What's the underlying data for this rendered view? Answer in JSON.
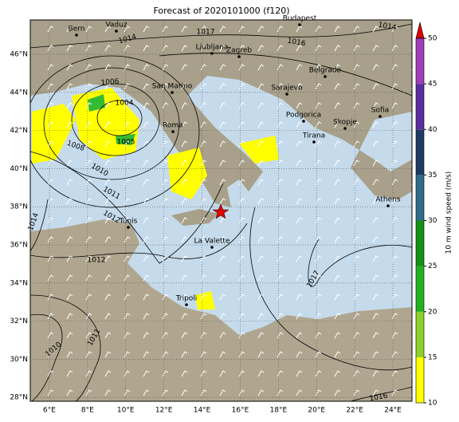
{
  "map": {
    "title": "Forecast of 2020101000 (f120)",
    "xlim": [
      5,
      25
    ],
    "ylim": [
      27.8,
      47.8
    ],
    "xticks": [
      {
        "value": 6,
        "label": "6°E"
      },
      {
        "value": 8,
        "label": "8°E"
      },
      {
        "value": 10,
        "label": "10°E"
      },
      {
        "value": 12,
        "label": "12°E"
      },
      {
        "value": 14,
        "label": "14°E"
      },
      {
        "value": 16,
        "label": "16°E"
      },
      {
        "value": 18,
        "label": "18°E"
      },
      {
        "value": 20,
        "label": "20°E"
      },
      {
        "value": 22,
        "label": "22°E"
      },
      {
        "value": 24,
        "label": "24°E"
      }
    ],
    "yticks": [
      {
        "value": 28,
        "label": "28°N"
      },
      {
        "value": 30,
        "label": "30°N"
      },
      {
        "value": 32,
        "label": "32°N"
      },
      {
        "value": 34,
        "label": "34°N"
      },
      {
        "value": 36,
        "label": "36°N"
      },
      {
        "value": 38,
        "label": "38°N"
      },
      {
        "value": 40,
        "label": "40°N"
      },
      {
        "value": 42,
        "label": "42°N"
      },
      {
        "value": 44,
        "label": "44°N"
      },
      {
        "value": 46,
        "label": "46°N"
      }
    ],
    "grid": true,
    "cities": [
      "Bern",
      "Vaduz",
      "Budapest",
      "Ljubljana",
      "Zagreb",
      "Belgrade",
      "San Marino",
      "Sarajevo",
      "Podgorica",
      "Sofia",
      "Roma",
      "Skopje",
      "Tirana",
      "Tunis",
      "Athens",
      "La Valette",
      "Tripoli"
    ],
    "isobars": [
      1014,
      1017,
      1016,
      1014,
      1006,
      1004,
      1005,
      1008,
      1010,
      1011,
      1012,
      1014,
      1012,
      1017,
      1011,
      1010,
      1016
    ],
    "colorbar": {
      "label": "10 m wind speed (m/s)",
      "lim": [
        10,
        50
      ],
      "ticks": [
        10,
        15,
        20,
        25,
        30,
        35,
        40,
        45,
        50
      ],
      "colors": [
        "#ffff00",
        "#8fd12a",
        "#22b022",
        "#119011",
        "#2f6b8a",
        "#203a66",
        "#5a2ea0",
        "#a03db8"
      ],
      "extend_color": "#dd0000"
    }
  }
}
